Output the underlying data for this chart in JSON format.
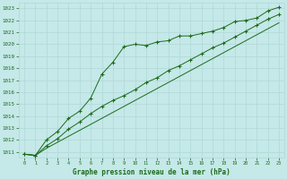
{
  "x": [
    0,
    1,
    2,
    3,
    4,
    5,
    6,
    7,
    8,
    9,
    10,
    11,
    12,
    13,
    14,
    15,
    16,
    17,
    18,
    19,
    20,
    21,
    22,
    23
  ],
  "line1": [
    1010.8,
    1010.7,
    1012.0,
    1012.7,
    1013.8,
    1014.4,
    1015.5,
    1017.5,
    1018.5,
    1019.8,
    1020.0,
    1019.9,
    1020.2,
    1020.3,
    1020.7,
    1020.7,
    1020.9,
    1021.1,
    1021.4,
    1021.9,
    1022.0,
    1022.2,
    1022.8,
    1023.1
  ],
  "line2": [
    1010.8,
    1010.7,
    1011.5,
    1012.1,
    1012.9,
    1013.5,
    1014.2,
    1014.8,
    1015.3,
    1015.7,
    1016.2,
    1016.8,
    1017.2,
    1017.8,
    1018.2,
    1018.7,
    1019.2,
    1019.7,
    1020.1,
    1020.6,
    1021.1,
    1021.6,
    1022.1,
    1022.5
  ],
  "line3": [
    1010.8,
    1010.7,
    1011.3,
    1011.8,
    1012.3,
    1012.8,
    1013.3,
    1013.8,
    1014.3,
    1014.8,
    1015.3,
    1015.8,
    1016.3,
    1016.8,
    1017.3,
    1017.8,
    1018.3,
    1018.8,
    1019.3,
    1019.8,
    1020.3,
    1020.8,
    1021.3,
    1021.8
  ],
  "bg_color": "#c5e8e8",
  "grid_major_color": "#b0d8d8",
  "grid_minor_color": "#b0d8d8",
  "line_color": "#1a6b1a",
  "text_color": "#1a6b1a",
  "title": "Graphe pression niveau de la mer (hPa)",
  "ylim_min": 1010.5,
  "ylim_max": 1023.5,
  "xlim_min": -0.5,
  "xlim_max": 23.5,
  "yticks": [
    1011,
    1012,
    1013,
    1014,
    1015,
    1016,
    1017,
    1018,
    1019,
    1020,
    1021,
    1022,
    1023
  ],
  "xticks": [
    0,
    1,
    2,
    3,
    4,
    5,
    6,
    7,
    8,
    9,
    10,
    11,
    12,
    13,
    14,
    15,
    16,
    17,
    18,
    19,
    20,
    21,
    22,
    23
  ]
}
